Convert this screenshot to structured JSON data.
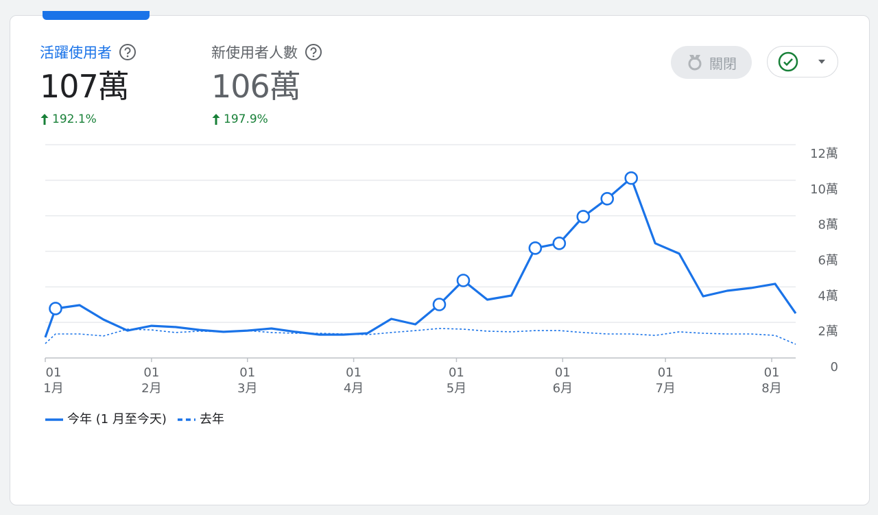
{
  "metrics": [
    {
      "label": "活躍使用者",
      "value": "107萬",
      "change": "192.1%"
    },
    {
      "label": "新使用者人數",
      "value": "106萬",
      "change": "197.9%"
    }
  ],
  "button": {
    "label": "關閉"
  },
  "chart_data": {
    "type": "line",
    "x": [
      "01-01",
      "01-04",
      "01-11",
      "01-18",
      "01-25",
      "02-01",
      "02-08",
      "02-15",
      "02-22",
      "03-01",
      "03-08",
      "03-15",
      "03-22",
      "03-29",
      "04-05",
      "04-12",
      "04-19",
      "04-26",
      "05-03",
      "05-10",
      "05-17",
      "05-24",
      "05-31",
      "06-07",
      "06-14",
      "06-21",
      "06-28",
      "07-05",
      "07-12",
      "07-19",
      "07-26",
      "08-02",
      "08-08"
    ],
    "xlim": [
      "01-01",
      "08-08"
    ],
    "xticks": [
      {
        "value": "01-01",
        "label": [
          "01",
          "1月"
        ]
      },
      {
        "value": "02-01",
        "label": [
          "01",
          "2月"
        ]
      },
      {
        "value": "03-01",
        "label": [
          "01",
          "3月"
        ]
      },
      {
        "value": "04-01",
        "label": [
          "01",
          "4月"
        ]
      },
      {
        "value": "05-01",
        "label": [
          "01",
          "5月"
        ]
      },
      {
        "value": "06-01",
        "label": [
          "01",
          "6月"
        ]
      },
      {
        "value": "07-01",
        "label": [
          "01",
          "7月"
        ]
      },
      {
        "value": "08-01",
        "label": [
          "01",
          "8月"
        ]
      }
    ],
    "ylim": [
      0,
      120000
    ],
    "yticks": [
      0,
      {
        "value": 20000,
        "label": "2萬"
      },
      {
        "value": 40000,
        "label": "4萬"
      },
      {
        "value": 60000,
        "label": "6萬"
      },
      {
        "value": 80000,
        "label": "8萬"
      },
      {
        "value": 100000,
        "label": "10萬"
      },
      {
        "value": 120000,
        "label": "12萬"
      }
    ],
    "grid": true,
    "series": [
      {
        "name": "今年 (1 月至今天)",
        "color": "#1a73e8",
        "dashed": false,
        "values": [
          11600,
          27800,
          29700,
          21600,
          15400,
          18100,
          17400,
          15800,
          14700,
          15400,
          16600,
          14700,
          13100,
          13100,
          13900,
          22000,
          18900,
          30100,
          43600,
          32800,
          35100,
          61800,
          64500,
          79500,
          89600,
          101200,
          64500,
          58700,
          34700,
          37800,
          39400,
          41700,
          25100
        ],
        "anomalies": [
          false,
          true,
          false,
          false,
          false,
          false,
          false,
          false,
          false,
          false,
          false,
          false,
          false,
          false,
          false,
          false,
          false,
          true,
          true,
          false,
          false,
          true,
          true,
          true,
          true,
          true,
          false,
          false,
          false,
          false,
          false,
          false,
          false
        ]
      },
      {
        "name": "去年",
        "color": "#1a73e8",
        "dashed": true,
        "values": [
          8100,
          13500,
          13500,
          12400,
          16200,
          15800,
          14300,
          15100,
          14700,
          15400,
          14300,
          13900,
          13900,
          13500,
          13100,
          14300,
          15400,
          16600,
          16200,
          15100,
          14700,
          15400,
          15400,
          14300,
          13500,
          13500,
          12700,
          14700,
          13900,
          13500,
          13500,
          12700,
          7700
        ]
      }
    ]
  }
}
